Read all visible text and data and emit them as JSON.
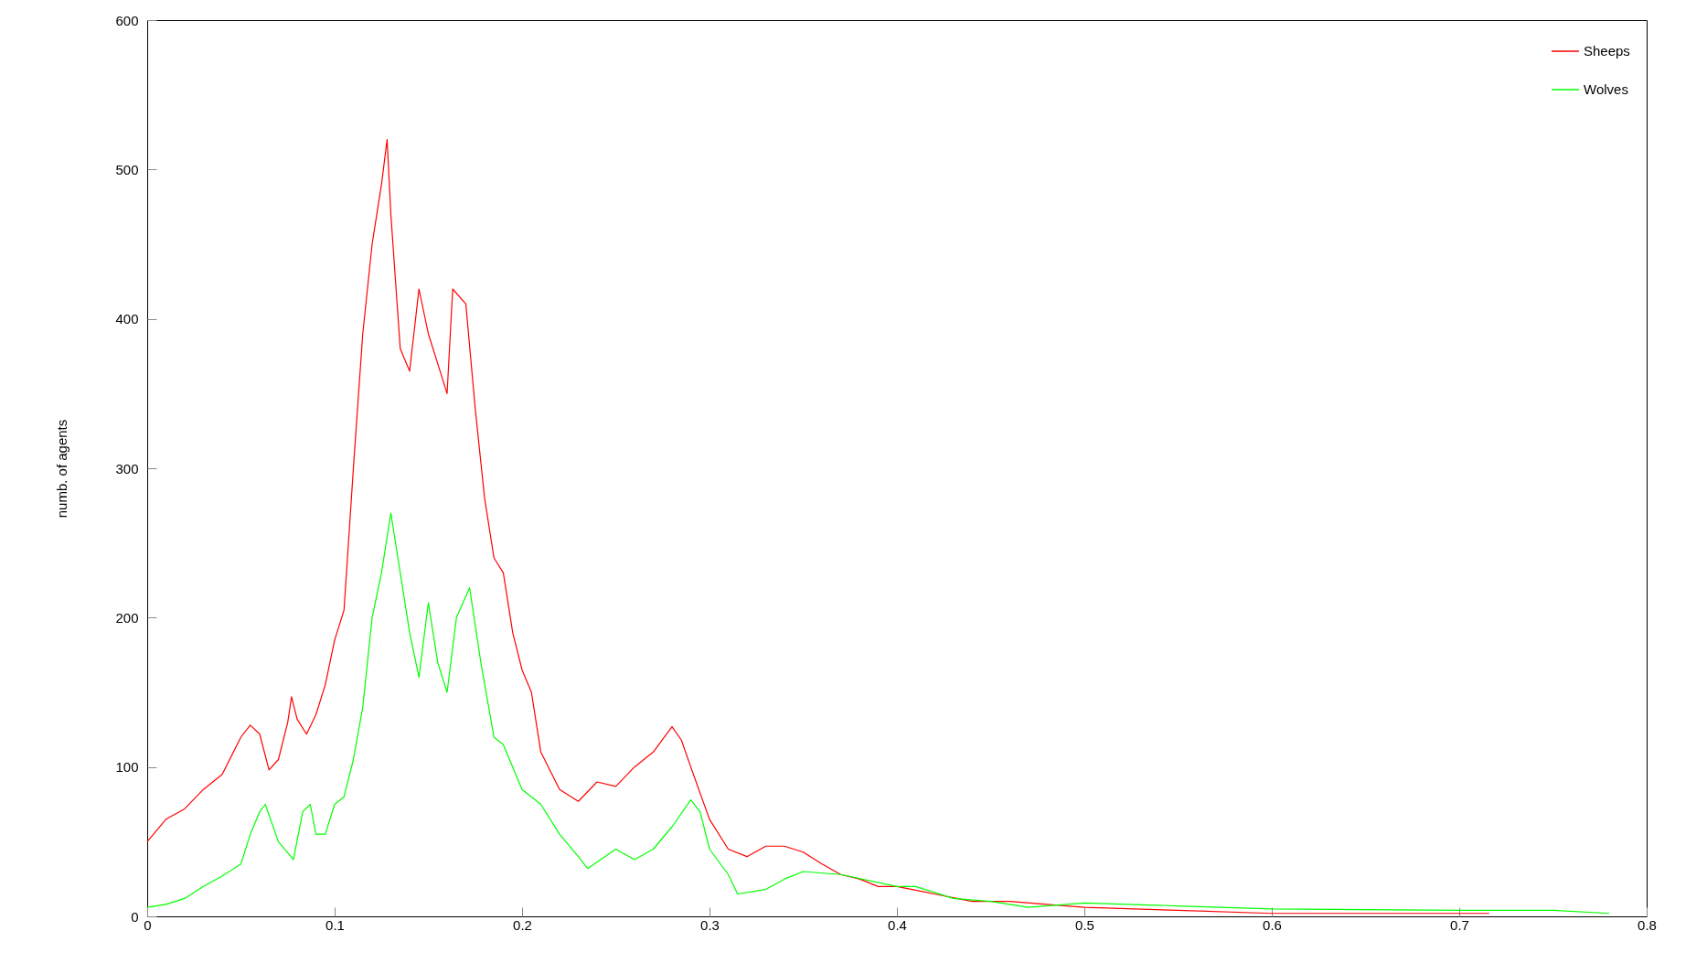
{
  "chart_data": {
    "type": "line",
    "ylabel": "numb. of agents",
    "xlim": [
      0,
      0.8
    ],
    "ylim": [
      0,
      600
    ],
    "xticks": [
      0,
      0.1,
      0.2,
      0.3,
      0.4,
      0.5,
      0.6,
      0.7,
      0.8
    ],
    "yticks": [
      0,
      100,
      200,
      300,
      400,
      500,
      600
    ],
    "grid": false,
    "legend": "top right",
    "line_style": "solid",
    "marker": "none",
    "series": [
      {
        "name": "Sheeps",
        "color": "#ff0000",
        "x": [
          0,
          0.01,
          0.02,
          0.03,
          0.04,
          0.05,
          0.055,
          0.06,
          0.065,
          0.07,
          0.075,
          0.077,
          0.08,
          0.085,
          0.09,
          0.095,
          0.1,
          0.105,
          0.11,
          0.115,
          0.12,
          0.125,
          0.128,
          0.13,
          0.135,
          0.14,
          0.145,
          0.15,
          0.155,
          0.16,
          0.163,
          0.17,
          0.175,
          0.18,
          0.185,
          0.19,
          0.195,
          0.2,
          0.205,
          0.21,
          0.22,
          0.23,
          0.24,
          0.25,
          0.26,
          0.27,
          0.28,
          0.285,
          0.29,
          0.3,
          0.31,
          0.32,
          0.33,
          0.34,
          0.35,
          0.36,
          0.37,
          0.38,
          0.39,
          0.4,
          0.42,
          0.44,
          0.46,
          0.5,
          0.55,
          0.6,
          0.65,
          0.716
        ],
        "values": [
          50,
          65,
          72,
          85,
          95,
          120,
          128,
          122,
          98,
          105,
          130,
          147,
          132,
          122,
          135,
          155,
          185,
          205,
          300,
          390,
          450,
          490,
          520,
          470,
          380,
          365,
          420,
          390,
          370,
          350,
          420,
          410,
          340,
          280,
          240,
          230,
          190,
          165,
          150,
          110,
          85,
          77,
          90,
          87,
          100,
          110,
          127,
          118,
          100,
          65,
          45,
          40,
          47,
          47,
          43,
          35,
          28,
          25,
          20,
          20,
          15,
          10,
          10,
          6,
          4,
          2,
          2,
          2
        ]
      },
      {
        "name": "Wolves",
        "color": "#00ff00",
        "x": [
          0,
          0.01,
          0.02,
          0.03,
          0.04,
          0.05,
          0.055,
          0.06,
          0.063,
          0.07,
          0.078,
          0.083,
          0.087,
          0.09,
          0.095,
          0.1,
          0.105,
          0.11,
          0.115,
          0.12,
          0.125,
          0.13,
          0.135,
          0.14,
          0.145,
          0.15,
          0.155,
          0.16,
          0.165,
          0.172,
          0.178,
          0.185,
          0.19,
          0.2,
          0.21,
          0.22,
          0.23,
          0.235,
          0.25,
          0.26,
          0.27,
          0.28,
          0.29,
          0.295,
          0.3,
          0.31,
          0.315,
          0.33,
          0.34,
          0.35,
          0.37,
          0.4,
          0.41,
          0.43,
          0.45,
          0.47,
          0.5,
          0.55,
          0.6,
          0.7,
          0.75,
          0.78
        ],
        "values": [
          6,
          8,
          12,
          20,
          27,
          35,
          55,
          70,
          75,
          50,
          38,
          70,
          75,
          55,
          55,
          75,
          80,
          105,
          140,
          200,
          230,
          270,
          230,
          190,
          160,
          210,
          170,
          150,
          200,
          220,
          170,
          120,
          115,
          85,
          75,
          55,
          40,
          32,
          45,
          38,
          45,
          60,
          78,
          70,
          45,
          28,
          15,
          18,
          25,
          30,
          28,
          20,
          20,
          12,
          10,
          6,
          9,
          7,
          5,
          4,
          4,
          2
        ]
      }
    ]
  }
}
